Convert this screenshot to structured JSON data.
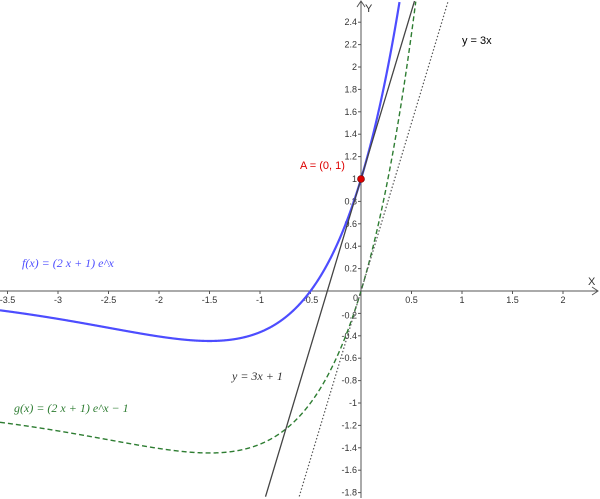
{
  "chart_data": {
    "type": "line",
    "xlabel": "X",
    "ylabel": "Y",
    "xlim": [
      -3.57,
      2.36
    ],
    "ylim": [
      -1.86,
      2.6
    ],
    "grid": false,
    "x_ticks": [
      "-3.5",
      "-3",
      "-2.5",
      "-2",
      "-1.5",
      "-1",
      "-0.5",
      "0",
      "0.5",
      "1",
      "1.5",
      "2"
    ],
    "x_tick_values": [
      -3.5,
      -3,
      -2.5,
      -2,
      -1.5,
      -1,
      -0.5,
      0,
      0.5,
      1,
      1.5,
      2
    ],
    "y_ticks": [
      "2.4",
      "2.2",
      "2",
      "1.8",
      "1.6",
      "1.4",
      "1.2",
      "1",
      "0.8",
      "0.6",
      "0.4",
      "0.2",
      "-0.2",
      "-0.4",
      "-0.6",
      "-0.8",
      "-1",
      "-1.2",
      "-1.4",
      "-1.6",
      "-1.8"
    ],
    "y_tick_values": [
      2.4,
      2.2,
      2,
      1.8,
      1.6,
      1.4,
      1.2,
      1,
      0.8,
      0.6,
      0.4,
      0.2,
      -0.2,
      -0.4,
      -0.6,
      -0.8,
      -1,
      -1.2,
      -1.4,
      -1.6,
      -1.8
    ],
    "series": [
      {
        "name": "f",
        "expression": "(2x+1)e^x",
        "label": "f(x)  =  (2 x + 1) e^x",
        "color": "#4d4dff",
        "style": "solid"
      },
      {
        "name": "g",
        "expression": "(2x+1)e^x - 1",
        "label": "g(x)  =  (2 x + 1) e^x − 1",
        "color": "#2e7d32",
        "style": "dashed"
      },
      {
        "name": "tangent",
        "expression": "3x+1",
        "label": "y = 3x + 1",
        "color": "#444444",
        "style": "solid"
      },
      {
        "name": "line",
        "expression": "3x",
        "label": "y = 3x",
        "color": "#555555",
        "style": "dotted"
      }
    ],
    "points": [
      {
        "name": "A",
        "x": 0,
        "y": 1,
        "label": "A = (0, 1)",
        "color": "#dd0000"
      }
    ]
  }
}
